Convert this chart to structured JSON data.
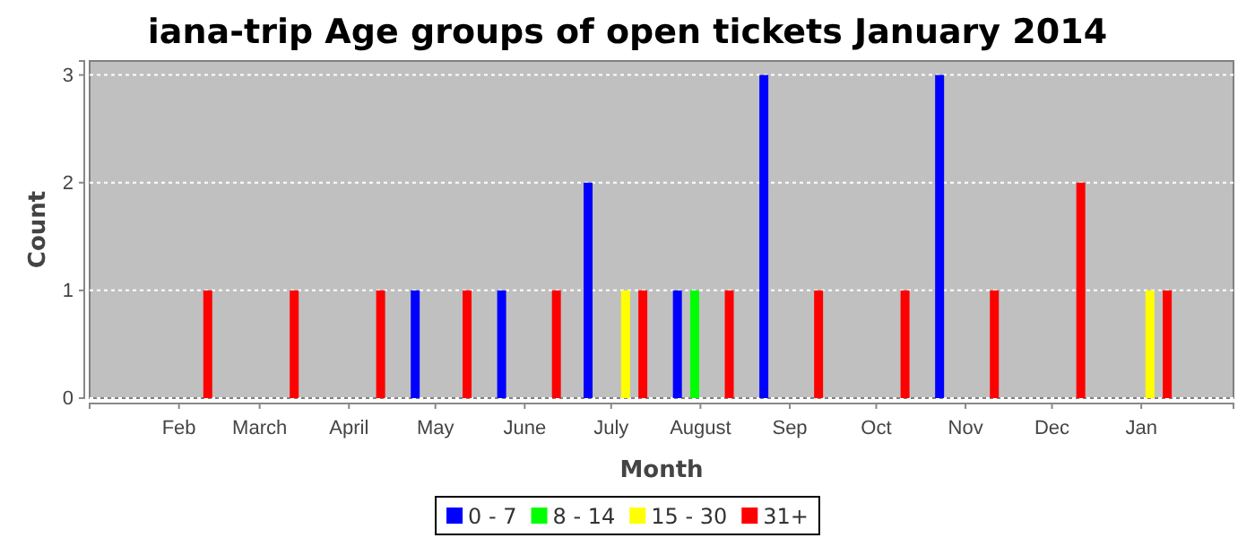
{
  "chart_data": {
    "type": "bar",
    "title": "iana-trip Age groups of open tickets January 2014",
    "xlabel": "Month",
    "ylabel": "Count",
    "xlim": [
      "2013-01-01",
      "2014-02-02"
    ],
    "ylim": [
      0,
      3.13
    ],
    "yticks": [
      0,
      1,
      2,
      3
    ],
    "xticks": [
      {
        "value": "2013-02-01",
        "label": "Feb"
      },
      {
        "value": "2013-03-01",
        "label": "March"
      },
      {
        "value": "2013-04-01",
        "label": "April"
      },
      {
        "value": "2013-05-01",
        "label": "May"
      },
      {
        "value": "2013-06-01",
        "label": "June"
      },
      {
        "value": "2013-07-01",
        "label": "July"
      },
      {
        "value": "2013-08-01",
        "label": "August"
      },
      {
        "value": "2013-09-01",
        "label": "Sep"
      },
      {
        "value": "2013-10-01",
        "label": "Oct"
      },
      {
        "value": "2013-11-01",
        "label": "Nov"
      },
      {
        "value": "2013-12-01",
        "label": "Dec"
      },
      {
        "value": "2014-01-01",
        "label": "Jan"
      }
    ],
    "grid": "y",
    "legend": "bottom",
    "series": [
      {
        "name": "0 - 7",
        "color": "#0000ff",
        "x": [
          "2013-04-24",
          "2013-05-24",
          "2013-06-23",
          "2013-07-24",
          "2013-08-23",
          "2013-10-23"
        ],
        "values": [
          1,
          1,
          2,
          1,
          3,
          3
        ]
      },
      {
        "name": "8 - 14",
        "color": "#00ff00",
        "x": [
          "2013-07-30"
        ],
        "values": [
          1
        ]
      },
      {
        "name": "15 - 30",
        "color": "#ffff00",
        "x": [
          "2013-07-06",
          "2014-01-04"
        ],
        "values": [
          1,
          1
        ]
      },
      {
        "name": "31+",
        "color": "#ff0000",
        "x": [
          "2013-02-11",
          "2013-03-13",
          "2013-04-12",
          "2013-05-12",
          "2013-06-12",
          "2013-07-12",
          "2013-08-11",
          "2013-09-11",
          "2013-10-11",
          "2013-11-11",
          "2013-12-11",
          "2014-01-10"
        ],
        "values": [
          1,
          1,
          1,
          1,
          1,
          1,
          1,
          1,
          1,
          1,
          2,
          1
        ]
      }
    ]
  }
}
